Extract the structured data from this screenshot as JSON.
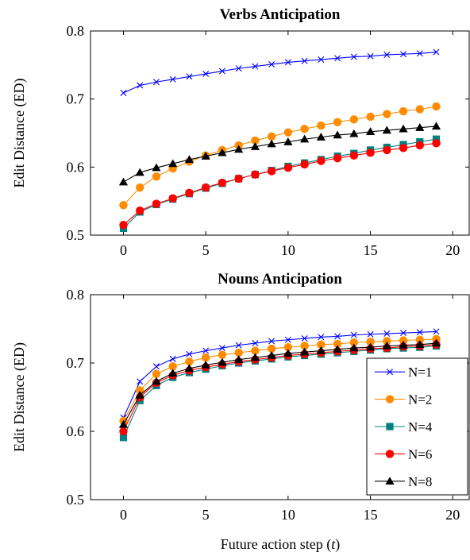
{
  "figure": {
    "xlabel": "Future action step (",
    "xlabel_var": "t",
    "xlabel_close": ")"
  },
  "colors": {
    "N=1": "#0000ff",
    "N=2": "#ff8c00",
    "N=4": "#008080",
    "N=6": "#ff0000",
    "N=8": "#000000"
  },
  "markers": {
    "N=1": "cross",
    "N=2": "circle",
    "N=4": "square",
    "N=6": "circle",
    "N=8": "triangle"
  },
  "chart_data": [
    {
      "type": "line",
      "title": "Verbs Anticipation",
      "xlabel": "",
      "ylabel": "Edit Distance (ED)",
      "xlim": [
        -2,
        21
      ],
      "ylim": [
        0.5,
        0.8
      ],
      "xticks": [
        "0",
        "5",
        "10",
        "15",
        "20"
      ],
      "yticks": [
        "0.5",
        "0.6",
        "0.7",
        "0.8"
      ],
      "grid": false,
      "legend": false,
      "x": [
        0,
        1,
        2,
        3,
        4,
        5,
        6,
        7,
        8,
        9,
        10,
        11,
        12,
        13,
        14,
        15,
        16,
        17,
        18,
        19
      ],
      "series": [
        {
          "name": "N=1",
          "values": [
            0.709,
            0.72,
            0.725,
            0.729,
            0.733,
            0.737,
            0.741,
            0.745,
            0.748,
            0.751,
            0.754,
            0.756,
            0.758,
            0.76,
            0.762,
            0.763,
            0.765,
            0.766,
            0.767,
            0.769
          ]
        },
        {
          "name": "N=2",
          "values": [
            0.544,
            0.57,
            0.586,
            0.598,
            0.608,
            0.617,
            0.625,
            0.632,
            0.639,
            0.645,
            0.651,
            0.656,
            0.661,
            0.666,
            0.67,
            0.674,
            0.678,
            0.682,
            0.685,
            0.689
          ]
        },
        {
          "name": "N=4",
          "values": [
            0.51,
            0.534,
            0.545,
            0.553,
            0.561,
            0.569,
            0.576,
            0.583,
            0.589,
            0.595,
            0.601,
            0.606,
            0.611,
            0.616,
            0.62,
            0.625,
            0.629,
            0.633,
            0.637,
            0.641
          ]
        },
        {
          "name": "N=6",
          "values": [
            0.515,
            0.536,
            0.546,
            0.554,
            0.562,
            0.57,
            0.577,
            0.583,
            0.589,
            0.594,
            0.599,
            0.604,
            0.609,
            0.613,
            0.617,
            0.621,
            0.625,
            0.628,
            0.632,
            0.635
          ]
        },
        {
          "name": "N=8",
          "values": [
            0.578,
            0.592,
            0.599,
            0.605,
            0.611,
            0.616,
            0.621,
            0.626,
            0.63,
            0.634,
            0.637,
            0.641,
            0.644,
            0.647,
            0.649,
            0.652,
            0.654,
            0.656,
            0.658,
            0.66
          ]
        }
      ]
    },
    {
      "type": "line",
      "title": "Nouns Anticipation",
      "xlabel": "Future action step (t)",
      "ylabel": "Edit Distance (ED)",
      "xlim": [
        -2,
        21
      ],
      "ylim": [
        0.5,
        0.8
      ],
      "xticks": [
        "0",
        "5",
        "10",
        "15",
        "20"
      ],
      "yticks": [
        "0.5",
        "0.6",
        "0.7",
        "0.8"
      ],
      "grid": false,
      "legend": "lower-right",
      "legend_entries": [
        "N=1",
        "N=2",
        "N=4",
        "N=6",
        "N=8"
      ],
      "x": [
        0,
        1,
        2,
        3,
        4,
        5,
        6,
        7,
        8,
        9,
        10,
        11,
        12,
        13,
        14,
        15,
        16,
        17,
        18,
        19
      ],
      "series": [
        {
          "name": "N=1",
          "values": [
            0.62,
            0.673,
            0.695,
            0.706,
            0.713,
            0.718,
            0.722,
            0.726,
            0.729,
            0.732,
            0.734,
            0.736,
            0.738,
            0.739,
            0.741,
            0.742,
            0.743,
            0.744,
            0.745,
            0.746
          ]
        },
        {
          "name": "N=2",
          "values": [
            0.615,
            0.66,
            0.684,
            0.695,
            0.702,
            0.708,
            0.712,
            0.715,
            0.718,
            0.721,
            0.723,
            0.725,
            0.727,
            0.728,
            0.73,
            0.731,
            0.732,
            0.733,
            0.734,
            0.735
          ]
        },
        {
          "name": "N=4",
          "values": [
            0.591,
            0.645,
            0.667,
            0.679,
            0.686,
            0.691,
            0.696,
            0.7,
            0.703,
            0.706,
            0.709,
            0.711,
            0.713,
            0.715,
            0.717,
            0.719,
            0.721,
            0.722,
            0.723,
            0.725
          ]
        },
        {
          "name": "N=6",
          "values": [
            0.6,
            0.65,
            0.671,
            0.682,
            0.689,
            0.694,
            0.698,
            0.702,
            0.705,
            0.708,
            0.711,
            0.713,
            0.715,
            0.717,
            0.719,
            0.721,
            0.722,
            0.724,
            0.725,
            0.727
          ]
        },
        {
          "name": "N=8",
          "values": [
            0.61,
            0.653,
            0.673,
            0.685,
            0.692,
            0.697,
            0.701,
            0.705,
            0.708,
            0.711,
            0.714,
            0.716,
            0.718,
            0.72,
            0.722,
            0.723,
            0.725,
            0.726,
            0.727,
            0.729
          ]
        }
      ]
    }
  ]
}
